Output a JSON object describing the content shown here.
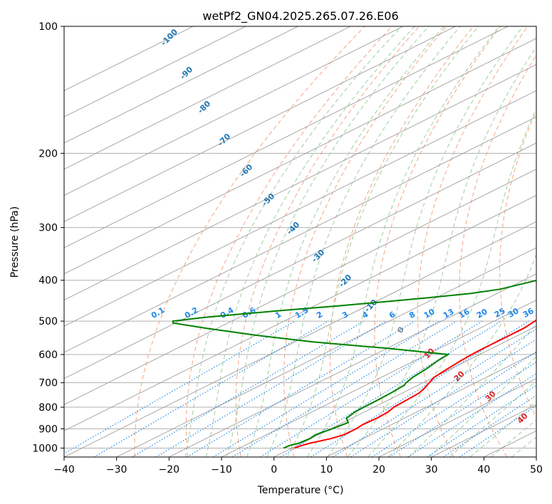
{
  "chart_data": {
    "type": "line",
    "title": "wetPf2_GN04.2025.265.07.26.E06",
    "xlabel": "Temperature (°C)",
    "ylabel": "Pressure (hPa)",
    "xlim": [
      -40,
      50
    ],
    "ylim": [
      1050,
      100
    ],
    "y_scale": "log",
    "x_ticks": [
      -40,
      -30,
      -20,
      -10,
      0,
      10,
      20,
      30,
      40,
      50
    ],
    "x_tick_labels": [
      "−40",
      "−30",
      "−20",
      "−10",
      "0",
      "10",
      "20",
      "30",
      "40",
      "50"
    ],
    "y_ticks": [
      100,
      200,
      300,
      400,
      500,
      600,
      700,
      800,
      900,
      1000
    ],
    "y_tick_labels": [
      "100",
      "200",
      "300",
      "400",
      "500",
      "600",
      "700",
      "800",
      "900",
      "1000"
    ],
    "skew_deg_per_log_p": 70,
    "colors": {
      "temperature": "#ff0000",
      "dewpoint": "#008000",
      "isotherm": "#9e9e9e",
      "dry_adiabat": "#f4a582",
      "moist_adiabat": "#9ecf9e",
      "mixing_ratio": "#1e88e5",
      "isotherm_label": "#1f77b4",
      "dry_adiabat_label": "#d62728",
      "zero_label": "#888888",
      "grid": "#b0b0b0"
    },
    "series": [
      {
        "name": "Temperature",
        "color": "#ff0000",
        "pressure": [
          1000,
          990,
          975,
          950,
          930,
          900,
          880,
          850,
          820,
          800,
          770,
          740,
          720,
          700,
          680,
          650,
          620,
          600,
          580,
          550,
          520,
          500,
          480,
          460,
          450,
          430,
          400,
          380,
          350,
          320,
          300,
          280,
          250,
          230,
          210,
          200,
          190,
          180,
          170,
          160,
          150,
          145,
          140,
          130,
          120,
          110,
          100
        ],
        "temperature": [
          0.5,
          0.7,
          1.5,
          3.8,
          4.8,
          4.9,
          4.5,
          4.8,
          4.5,
          3.8,
          3.5,
          3.2,
          2.3,
          1.2,
          0.1,
          -0.6,
          -1.2,
          -1.5,
          -1.6,
          -1.6,
          -1.6,
          -2.2,
          -3.0,
          -4.0,
          -4.6,
          -5.8,
          -8.2,
          -10.3,
          -12.8,
          -15.2,
          -16.9,
          -19.0,
          -22.2,
          -25.0,
          -28.3,
          -30.2,
          -32.4,
          -35.0,
          -37.8,
          -40.8,
          -44.0,
          -45.7,
          -47.2,
          -50.7,
          -54.2,
          -57.9,
          -61.8
        ]
      },
      {
        "name": "Dewpoint",
        "color": "#008000",
        "pressure": [
          1000,
          985,
          975,
          950,
          930,
          900,
          870,
          850,
          820,
          800,
          770,
          740,
          710,
          700,
          680,
          650,
          620,
          600,
          580,
          560,
          540,
          520,
          505,
          500,
          490,
          480,
          470,
          460,
          450,
          440,
          430,
          420,
          400,
          380,
          370,
          350,
          320,
          300,
          280,
          250,
          230,
          210,
          200,
          190,
          180,
          170,
          160,
          150,
          140,
          135,
          130,
          125,
          120,
          115,
          110,
          105,
          100
        ],
        "temperature": [
          -1.6,
          -1.4,
          -0.6,
          -0.2,
          -0.6,
          0.3,
          1.0,
          -1.0,
          -1.8,
          -1.9,
          -2.0,
          -2.2,
          -2.6,
          -3.2,
          -4.0,
          -4.6,
          -5.6,
          -6.0,
          -20.0,
          -36.6,
          -50.0,
          -62.0,
          -70.5,
          -71.2,
          -66.6,
          -60.2,
          -53.3,
          -45.4,
          -38.4,
          -31.5,
          -25.0,
          -21.0,
          -17.4,
          -14.4,
          -14.0,
          -12.8,
          -15.2,
          -16.9,
          -19.0,
          -22.2,
          -25.0,
          -28.8,
          -30.2,
          -32.4,
          -35.0,
          -37.8,
          -40.8,
          -44.0,
          -47.2,
          -48.9,
          -50.7,
          -52.1,
          -53.6,
          -54.6,
          -55.8,
          -57.9,
          -60.1
        ]
      }
    ],
    "isotherm_labels": [
      "-100",
      "-90",
      "-80",
      "-70",
      "-60",
      "-50",
      "-40",
      "-30",
      "-20",
      "-10"
    ],
    "mixing_ratio_labels": [
      "0.1",
      "0.2",
      "0.4",
      "0.6",
      "1",
      "1.5",
      "2",
      "3",
      "4",
      "6",
      "8",
      "10",
      "13",
      "16",
      "20",
      "25",
      "30",
      "36"
    ],
    "dry_adiabat_labels": [
      "0",
      "10",
      "20",
      "30",
      "40"
    ]
  }
}
